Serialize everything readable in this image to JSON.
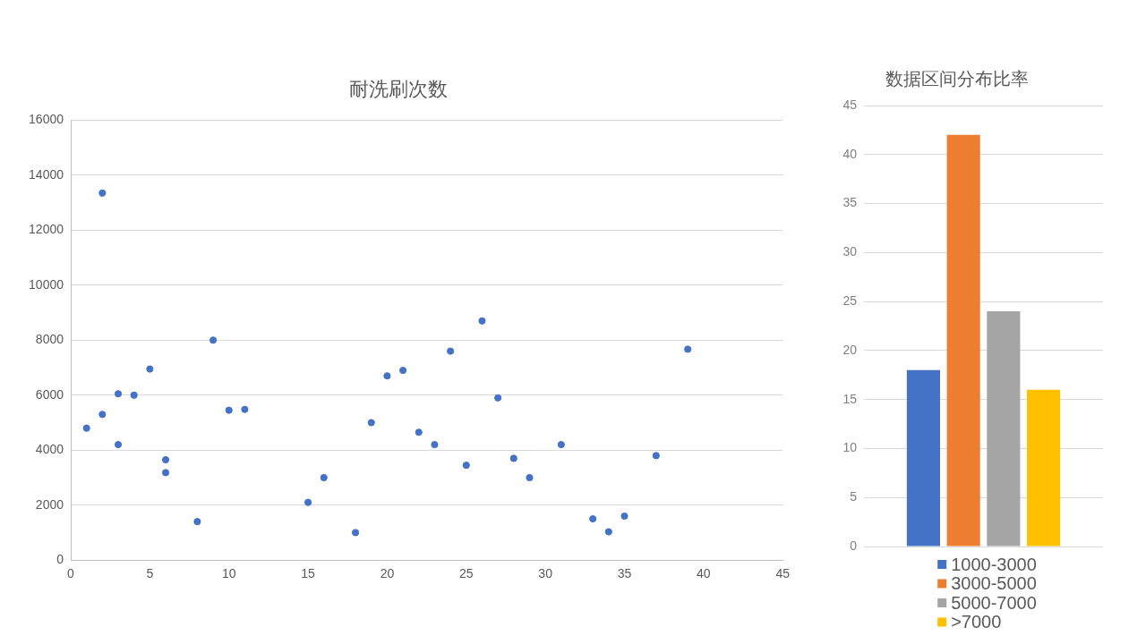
{
  "chart_data": [
    {
      "type": "scatter",
      "title": "耐洗刷次数",
      "x": [
        1,
        2,
        2,
        3,
        3,
        4,
        5,
        6,
        6,
        8,
        9,
        10,
        11,
        15,
        16,
        18,
        19,
        20,
        21,
        22,
        23,
        24,
        25,
        26,
        27,
        28,
        29,
        31,
        33,
        34,
        35,
        37,
        39
      ],
      "values": [
        4800,
        13350,
        5300,
        6050,
        4200,
        6000,
        6950,
        3650,
        3180,
        1400,
        8000,
        5450,
        5480,
        2100,
        3000,
        1000,
        5000,
        6700,
        6900,
        4650,
        4200,
        7600,
        3450,
        8700,
        5900,
        3700,
        3000,
        4200,
        1500,
        1030,
        1600,
        3800,
        7670
      ],
      "color": "#4472c4",
      "marker": "circle",
      "xlim": [
        0,
        45
      ],
      "xticks": [
        0,
        5,
        10,
        15,
        20,
        25,
        30,
        35,
        40,
        45
      ],
      "ylim": [
        0,
        16000
      ],
      "yticks": [
        0,
        2000,
        4000,
        6000,
        8000,
        10000,
        12000,
        14000,
        16000
      ],
      "grid": "y"
    },
    {
      "type": "bar",
      "title": "数据区间分布比率",
      "categories": [
        null
      ],
      "series": [
        {
          "name": "1000-3000",
          "color": "#4472c4",
          "values": [
            18
          ]
        },
        {
          "name": "3000-5000",
          "color": "#ed7d31",
          "values": [
            42
          ]
        },
        {
          "name": "5000-7000",
          "color": "#a5a5a5",
          "values": [
            24
          ]
        },
        {
          "name": ">7000",
          "color": "#ffc000",
          "values": [
            16
          ]
        }
      ],
      "ylim": [
        0,
        45
      ],
      "yticks": [
        0,
        5,
        10,
        15,
        20,
        25,
        30,
        35,
        40,
        45
      ],
      "grid": "y",
      "legend": "bottom",
      "tick_labels": "y"
    }
  ]
}
